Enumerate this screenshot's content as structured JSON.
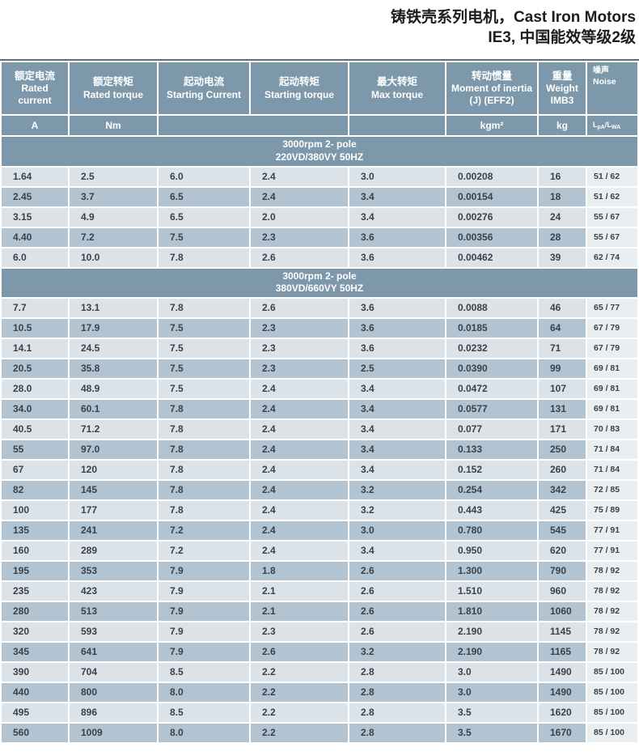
{
  "title": {
    "line1": "铸铁壳系列电机，Cast Iron Motors",
    "line2": "IE3, 中国能效等级2级"
  },
  "table": {
    "columns": [
      {
        "zh": "额定电流",
        "en": "Rated current",
        "unit": "A"
      },
      {
        "zh": "额定转矩",
        "en": "Rated torque",
        "unit": "Nm"
      },
      {
        "zh": "起动电流",
        "en": "Starting Current",
        "unit": ""
      },
      {
        "zh": "起动转矩",
        "en": "Starting torque",
        "unit": ""
      },
      {
        "zh": "最大转矩",
        "en": "Max torque",
        "unit": ""
      },
      {
        "zh": "转动惯量",
        "en": "Moment of inertia (J) (EFF2)",
        "unit": "kgm²"
      },
      {
        "zh": "重量",
        "en": "Weight IMB3",
        "unit": "kg"
      },
      {
        "zh": "噪声",
        "en": "Noise",
        "unit": "LpA/LWA"
      }
    ],
    "noise_unit_parts": {
      "p1": "L",
      "s1": "pA",
      "p2": "/L",
      "s2": "WA"
    },
    "sections": [
      {
        "header_line1": "3000rpm 2- pole",
        "header_line2": "220VD/380VY  50HZ",
        "rows": [
          [
            "1.64",
            "2.5",
            "6.0",
            "2.4",
            "3.0",
            "0.00208",
            "16",
            "51 / 62"
          ],
          [
            "2.45",
            "3.7",
            "6.5",
            "2.4",
            "3.4",
            "0.00154",
            "18",
            "51 / 62"
          ],
          [
            "3.15",
            "4.9",
            "6.5",
            "2.0",
            "3.4",
            "0.00276",
            "24",
            "55 / 67"
          ],
          [
            "4.40",
            "7.2",
            "7.5",
            "2.3",
            "3.6",
            "0.00356",
            "28",
            "55 / 67"
          ],
          [
            "6.0",
            "10.0",
            "7.8",
            "2.6",
            "3.6",
            "0.00462",
            "39",
            "62 / 74"
          ]
        ]
      },
      {
        "header_line1": "3000rpm 2- pole",
        "header_line2": "380VD/660VY  50HZ",
        "rows": [
          [
            "7.7",
            "13.1",
            "7.8",
            "2.6",
            "3.6",
            "0.0088",
            "46",
            "65 / 77"
          ],
          [
            "10.5",
            "17.9",
            "7.5",
            "2.3",
            "3.6",
            "0.0185",
            "64",
            "67 / 79"
          ],
          [
            "14.1",
            "24.5",
            "7.5",
            "2.3",
            "3.6",
            "0.0232",
            "71",
            "67 / 79"
          ],
          [
            "20.5",
            "35.8",
            "7.5",
            "2.3",
            "2.5",
            "0.0390",
            "99",
            "69 / 81"
          ],
          [
            "28.0",
            "48.9",
            "7.5",
            "2.4",
            "3.4",
            "0.0472",
            "107",
            "69 / 81"
          ],
          [
            "34.0",
            "60.1",
            "7.8",
            "2.4",
            "3.4",
            "0.0577",
            "131",
            "69 / 81"
          ],
          [
            "40.5",
            "71.2",
            "7.8",
            "2.4",
            "3.4",
            "0.077",
            "171",
            "70 / 83"
          ],
          [
            "55",
            "97.0",
            "7.8",
            "2.4",
            "3.4",
            "0.133",
            "250",
            "71 / 84"
          ],
          [
            "67",
            "120",
            "7.8",
            "2.4",
            "3.4",
            "0.152",
            "260",
            "71 / 84"
          ],
          [
            "82",
            "145",
            "7.8",
            "2.4",
            "3.2",
            "0.254",
            "342",
            "72 / 85"
          ],
          [
            "100",
            "177",
            "7.8",
            "2.4",
            "3.2",
            "0.443",
            "425",
            "75 / 89"
          ],
          [
            "135",
            "241",
            "7.2",
            "2.4",
            "3.0",
            "0.780",
            "545",
            "77 / 91"
          ],
          [
            "160",
            "289",
            "7.2",
            "2.4",
            "3.4",
            "0.950",
            "620",
            "77 / 91"
          ],
          [
            "195",
            "353",
            "7.9",
            "1.8",
            "2.6",
            "1.300",
            "790",
            "78 / 92"
          ],
          [
            "235",
            "423",
            "7.9",
            "2.1",
            "2.6",
            "1.510",
            "960",
            "78 / 92"
          ],
          [
            "280",
            "513",
            "7.9",
            "2.1",
            "2.6",
            "1.810",
            "1060",
            "78 / 92"
          ],
          [
            "320",
            "593",
            "7.9",
            "2.3",
            "2.6",
            "2.190",
            "1145",
            "78 / 92"
          ],
          [
            "345",
            "641",
            "7.9",
            "2.6",
            "3.2",
            "2.190",
            "1165",
            "78 / 92"
          ],
          [
            "390",
            "704",
            "8.5",
            "2.2",
            "2.8",
            "3.0",
            "1490",
            "85 / 100"
          ],
          [
            "440",
            "800",
            "8.0",
            "2.2",
            "2.8",
            "3.0",
            "1490",
            "85 / 100"
          ],
          [
            "495",
            "896",
            "8.5",
            "2.2",
            "2.8",
            "3.5",
            "1620",
            "85 / 100"
          ],
          [
            "560",
            "1009",
            "8.0",
            "2.2",
            "2.8",
            "3.5",
            "1670",
            "85 / 100"
          ]
        ]
      }
    ]
  },
  "colors": {
    "header_slate": "#7d98aa",
    "row_light": "#dce3e8",
    "row_dark": "#b2c4d1",
    "noise_column_bg": "#e9eef1",
    "title_text": "#1d1d1f",
    "cell_text": "#3b4148"
  }
}
